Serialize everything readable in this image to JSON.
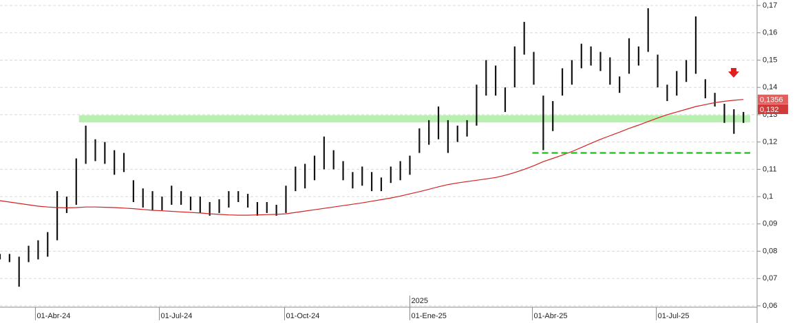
{
  "chart_data": {
    "type": "ohlc",
    "x": [
      "2024-03-06",
      "2024-03-13",
      "2024-03-20",
      "2024-03-27",
      "2024-04-03",
      "2024-04-10",
      "2024-04-17",
      "2024-04-24",
      "2024-05-01",
      "2024-05-08",
      "2024-05-15",
      "2024-05-22",
      "2024-05-29",
      "2024-06-05",
      "2024-06-12",
      "2024-06-19",
      "2024-06-26",
      "2024-07-03",
      "2024-07-10",
      "2024-07-17",
      "2024-07-24",
      "2024-07-31",
      "2024-08-07",
      "2024-08-14",
      "2024-08-21",
      "2024-08-28",
      "2024-09-04",
      "2024-09-11",
      "2024-09-18",
      "2024-09-25",
      "2024-10-02",
      "2024-10-09",
      "2024-10-16",
      "2024-10-23",
      "2024-10-30",
      "2024-11-06",
      "2024-11-13",
      "2024-11-20",
      "2024-11-27",
      "2024-12-04",
      "2024-12-11",
      "2024-12-18",
      "2024-12-25",
      "2025-01-01",
      "2025-01-08",
      "2025-01-15",
      "2025-01-22",
      "2025-01-29",
      "2025-02-05",
      "2025-02-12",
      "2025-02-19",
      "2025-02-26",
      "2025-03-05",
      "2025-03-12",
      "2025-03-19",
      "2025-03-26",
      "2025-04-02",
      "2025-04-09",
      "2025-04-16",
      "2025-04-23",
      "2025-04-30",
      "2025-05-07",
      "2025-05-14",
      "2025-05-21",
      "2025-05-28",
      "2025-06-04",
      "2025-06-11",
      "2025-06-18",
      "2025-06-25",
      "2025-07-02",
      "2025-07-09",
      "2025-07-16",
      "2025-07-23",
      "2025-07-30",
      "2025-08-06",
      "2025-08-13",
      "2025-08-20",
      "2025-08-27",
      "2025-09-03"
    ],
    "ohlc": {
      "color": "#111111",
      "high": [
        0.079,
        0.079,
        0.078,
        0.082,
        0.084,
        0.087,
        0.102,
        0.1,
        0.114,
        0.126,
        0.121,
        0.12,
        0.117,
        0.116,
        0.106,
        0.103,
        0.102,
        0.1,
        0.104,
        0.102,
        0.1,
        0.1,
        0.098,
        0.099,
        0.102,
        0.102,
        0.101,
        0.098,
        0.098,
        0.097,
        0.104,
        0.111,
        0.112,
        0.115,
        0.122,
        0.117,
        0.113,
        0.109,
        0.111,
        0.109,
        0.107,
        0.111,
        0.113,
        0.115,
        0.125,
        0.128,
        0.133,
        0.128,
        0.126,
        0.128,
        0.141,
        0.15,
        0.148,
        0.14,
        0.155,
        0.164,
        0.153,
        0.137,
        0.135,
        0.147,
        0.15,
        0.156,
        0.155,
        0.153,
        0.151,
        0.144,
        0.158,
        0.155,
        0.169,
        0.152,
        0.141,
        0.146,
        0.15,
        0.166,
        0.143,
        0.138,
        0.134,
        0.132,
        0.131
      ],
      "low": [
        0.077,
        0.076,
        0.067,
        0.076,
        0.077,
        0.078,
        0.084,
        0.094,
        0.097,
        0.112,
        0.113,
        0.112,
        0.108,
        0.109,
        0.098,
        0.096,
        0.095,
        0.095,
        0.097,
        0.097,
        0.095,
        0.094,
        0.093,
        0.094,
        0.096,
        0.098,
        0.096,
        0.093,
        0.094,
        0.093,
        0.094,
        0.102,
        0.103,
        0.106,
        0.11,
        0.11,
        0.106,
        0.103,
        0.104,
        0.102,
        0.102,
        0.105,
        0.106,
        0.108,
        0.116,
        0.119,
        0.121,
        0.116,
        0.12,
        0.122,
        0.126,
        0.137,
        0.137,
        0.131,
        0.14,
        0.152,
        0.141,
        0.117,
        0.124,
        0.137,
        0.141,
        0.147,
        0.148,
        0.146,
        0.141,
        0.138,
        0.145,
        0.148,
        0.153,
        0.14,
        0.135,
        0.137,
        0.142,
        0.145,
        0.136,
        0.133,
        0.127,
        0.123,
        0.127
      ]
    },
    "moving_average": {
      "color": "#d42020",
      "values": [
        0.0985,
        0.098,
        0.0975,
        0.097,
        0.0965,
        0.0962,
        0.096,
        0.0959,
        0.096,
        0.0962,
        0.0962,
        0.0961,
        0.096,
        0.0958,
        0.0956,
        0.0953,
        0.095,
        0.0948,
        0.0946,
        0.0944,
        0.0942,
        0.094,
        0.0937,
        0.0935,
        0.0933,
        0.0932,
        0.0932,
        0.0933,
        0.0934,
        0.0935,
        0.0937,
        0.0942,
        0.0947,
        0.0952,
        0.0957,
        0.0962,
        0.0967,
        0.0972,
        0.0977,
        0.0983,
        0.0989,
        0.0995,
        0.1002,
        0.101,
        0.1018,
        0.1027,
        0.1036,
        0.1044,
        0.105,
        0.1055,
        0.106,
        0.1065,
        0.107,
        0.1078,
        0.1088,
        0.11,
        0.1113,
        0.1128,
        0.114,
        0.1152,
        0.1165,
        0.118,
        0.1195,
        0.121,
        0.1223,
        0.1236,
        0.125,
        0.1262,
        0.1275,
        0.1288,
        0.13,
        0.131,
        0.132,
        0.133,
        0.1337,
        0.1344,
        0.1349,
        0.1353,
        0.1356
      ]
    },
    "zone": {
      "from": "2024-05-03",
      "to": "2025-09-08",
      "low": 0.1272,
      "high": 0.1298,
      "color": "#b8f0b0"
    },
    "support": {
      "from": "2025-04-01",
      "to": "2025-09-08",
      "value": 0.116,
      "color": "#22cc22"
    },
    "price_labels": [
      {
        "value": 0.1356,
        "label": "0,1356",
        "color": "#e06060"
      },
      {
        "value": 0.132,
        "label": "0,132",
        "color": "#d03a3a"
      }
    ],
    "year_marker": {
      "value": "2025-01-01",
      "label": "2025"
    },
    "xlim": [
      "2024-03-06",
      "2025-09-12"
    ],
    "xticks": [
      {
        "value": "2024-04-01",
        "label": "01-Abr-24"
      },
      {
        "value": "2024-07-01",
        "label": "01-Jul-24"
      },
      {
        "value": "2024-10-01",
        "label": "01-Oct-24"
      },
      {
        "value": "2025-01-01",
        "label": "01-Ene-25"
      },
      {
        "value": "2025-04-01",
        "label": "01-Abr-25"
      },
      {
        "value": "2025-07-01",
        "label": "01-Jul-25"
      }
    ],
    "ylim": [
      0.06,
      0.17
    ],
    "yticks": [
      {
        "value": 0.06,
        "label": "0,06"
      },
      {
        "value": 0.07,
        "label": "0,07"
      },
      {
        "value": 0.08,
        "label": "0,08"
      },
      {
        "value": 0.09,
        "label": "0,09"
      },
      {
        "value": 0.1,
        "label": "0,1"
      },
      {
        "value": 0.11,
        "label": "0,11"
      },
      {
        "value": 0.12,
        "label": "0,12"
      },
      {
        "value": 0.13,
        "label": "0,13"
      },
      {
        "value": 0.14,
        "label": "0,14"
      },
      {
        "value": 0.15,
        "label": "0,15"
      },
      {
        "value": 0.16,
        "label": "0,16"
      },
      {
        "value": 0.17,
        "label": "0,17"
      }
    ],
    "grid": true
  }
}
